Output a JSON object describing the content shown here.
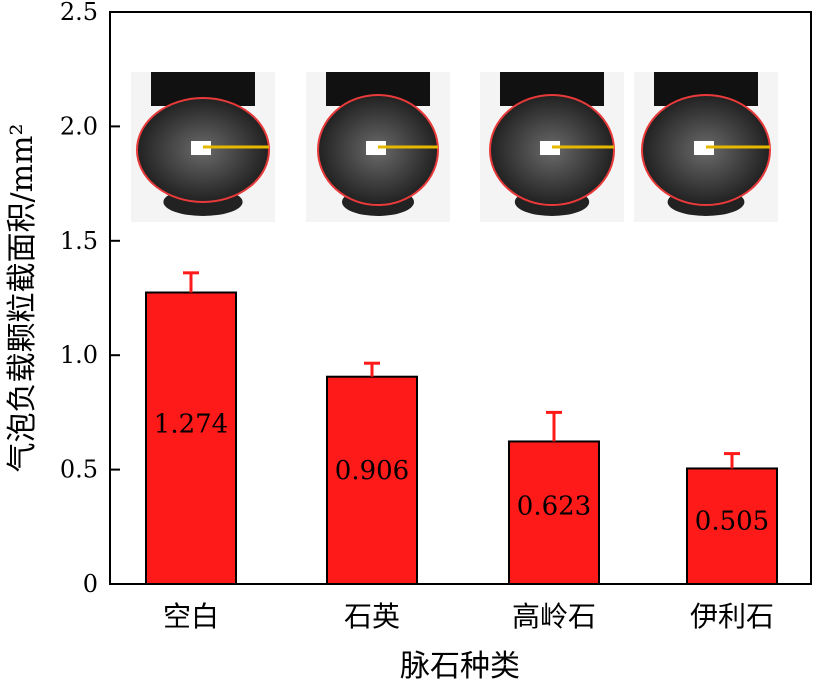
{
  "chart_data": {
    "type": "bar",
    "title": "",
    "xlabel": "脉石种类",
    "ylabel": "气泡负载颗粒截面积/mm²",
    "ylim": [
      0,
      2.5
    ],
    "yticks": [
      "0",
      "0.5",
      "1.0",
      "1.5",
      "2.0",
      "2.5"
    ],
    "categories": [
      "空白",
      "石英",
      "高岭石",
      "伊利石"
    ],
    "values": [
      1.274,
      0.906,
      0.623,
      0.505
    ],
    "data_labels": [
      "1.274",
      "0.906",
      "0.623",
      "0.505"
    ],
    "error_upper": [
      1.36,
      0.965,
      0.75,
      0.57
    ],
    "bar_color": "#ff1a1a",
    "error_color": "#ff1a1a",
    "grid": false,
    "inset_images": "bubble photos with red ellipse outlines and yellow radius lines above each bar"
  }
}
